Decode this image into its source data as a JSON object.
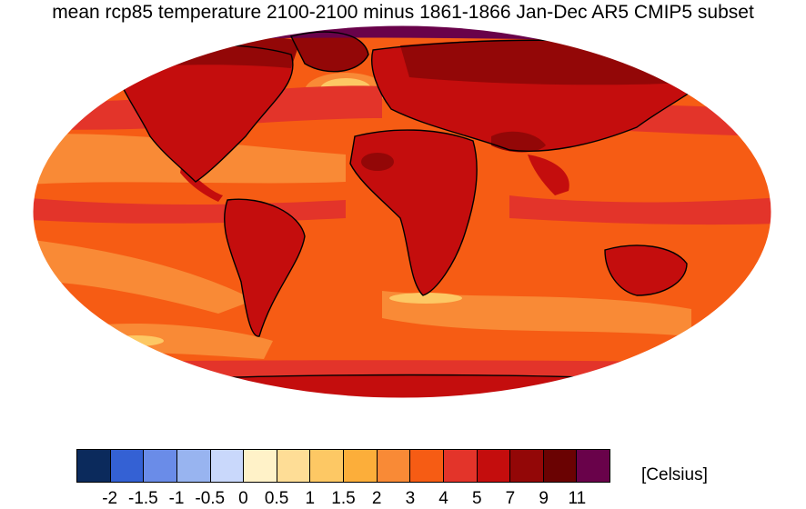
{
  "title": "mean rcp85 temperature 2100-2100 minus 1861-1866 Jan-Dec AR5 CMIP5 subset",
  "legend": {
    "units": "[Celsius]",
    "tick_labels": [
      "-2",
      "-1.5",
      "-1",
      "-0.5",
      "0",
      "0.5",
      "1",
      "1.5",
      "2",
      "3",
      "4",
      "5",
      "7",
      "9",
      "11"
    ],
    "colors": [
      "#0b2a5c",
      "#3461d4",
      "#6a8ce8",
      "#98b4f0",
      "#c9d8fb",
      "#fff2c8",
      "#fedd96",
      "#fdc864",
      "#fcae3a",
      "#f98a36",
      "#f65c14",
      "#e3342a",
      "#c40d0d",
      "#930707",
      "#6a0202",
      "#69024a"
    ]
  },
  "map_data": {
    "projection": "Robinson",
    "variable": "temperature change",
    "pattern": "strongest warming over Arctic and high-latitude land; moderate warming over oceans"
  }
}
